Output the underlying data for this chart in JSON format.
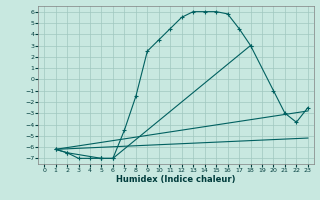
{
  "title": "",
  "xlabel": "Humidex (Indice chaleur)",
  "bg_color": "#c8e8e0",
  "grid_color": "#a0c8c0",
  "line_color": "#006060",
  "xlim": [
    -0.5,
    23.5
  ],
  "ylim": [
    -7.5,
    6.5
  ],
  "xticks": [
    0,
    1,
    2,
    3,
    4,
    5,
    6,
    7,
    8,
    9,
    10,
    11,
    12,
    13,
    14,
    15,
    16,
    17,
    18,
    19,
    20,
    21,
    22,
    23
  ],
  "yticks": [
    -7,
    -6,
    -5,
    -4,
    -3,
    -2,
    -1,
    0,
    1,
    2,
    3,
    4,
    5,
    6
  ],
  "line1_x": [
    1,
    2,
    3,
    4,
    5,
    5,
    6,
    7,
    8,
    9,
    10,
    11,
    12,
    13,
    14,
    15,
    16,
    17,
    18
  ],
  "line1_y": [
    -6.2,
    -6.5,
    -7,
    -7,
    -7,
    -7,
    -7,
    -4.5,
    -1.5,
    2.5,
    3.5,
    4.5,
    5.5,
    6,
    6,
    6,
    5.8,
    4.5,
    3
  ],
  "line2_x": [
    1,
    2,
    5,
    6,
    18,
    20,
    21,
    22,
    23
  ],
  "line2_y": [
    -6.2,
    -6.5,
    -7,
    -7,
    3.0,
    -1.0,
    -3.0,
    -3.8,
    -2.5
  ],
  "line3_x": [
    1,
    23
  ],
  "line3_y": [
    -6.2,
    -2.8
  ],
  "line4_x": [
    1,
    23
  ],
  "line4_y": [
    -6.2,
    -5.2
  ]
}
